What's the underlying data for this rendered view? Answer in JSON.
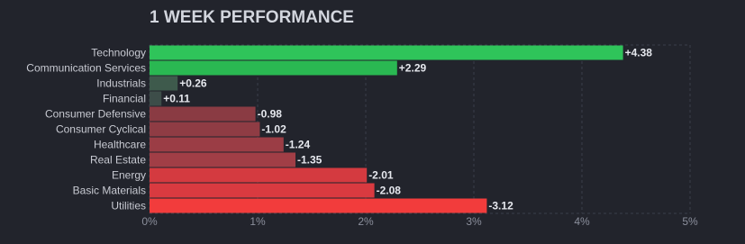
{
  "chart_data": {
    "type": "hbar",
    "title": "1 WEEK PERFORMANCE",
    "categories": [
      "Technology",
      "Communication Services",
      "Industrials",
      "Financial",
      "Consumer Defensive",
      "Consumer Cyclical",
      "Healthcare",
      "Real Estate",
      "Energy",
      "Basic Materials",
      "Utilities"
    ],
    "values": [
      4.38,
      2.29,
      0.26,
      0.11,
      -0.98,
      -1.02,
      -1.24,
      -1.35,
      -2.01,
      -2.08,
      -3.12
    ],
    "value_labels": [
      "+4.38",
      "+2.29",
      "+0.26",
      "+0.11",
      "-0.98",
      "-1.02",
      "-1.24",
      "-1.35",
      "-2.01",
      "-2.08",
      "-3.12"
    ],
    "colors": [
      "#2fc45a",
      "#2ab852",
      "#3e5a4c",
      "#3d4d49",
      "#8a3b43",
      "#8f3c44",
      "#9b3d45",
      "#a13e46",
      "#d43a40",
      "#d93a40",
      "#f23c3c"
    ],
    "xlim": [
      0,
      5
    ],
    "xticks": [
      {
        "value": 0,
        "label": "0%"
      },
      {
        "value": 1,
        "label": "1%"
      },
      {
        "value": 2,
        "label": "2%"
      },
      {
        "value": 3,
        "label": "3%"
      },
      {
        "value": 4,
        "label": "4%"
      },
      {
        "value": 5,
        "label": "5%"
      }
    ],
    "grid": true
  }
}
